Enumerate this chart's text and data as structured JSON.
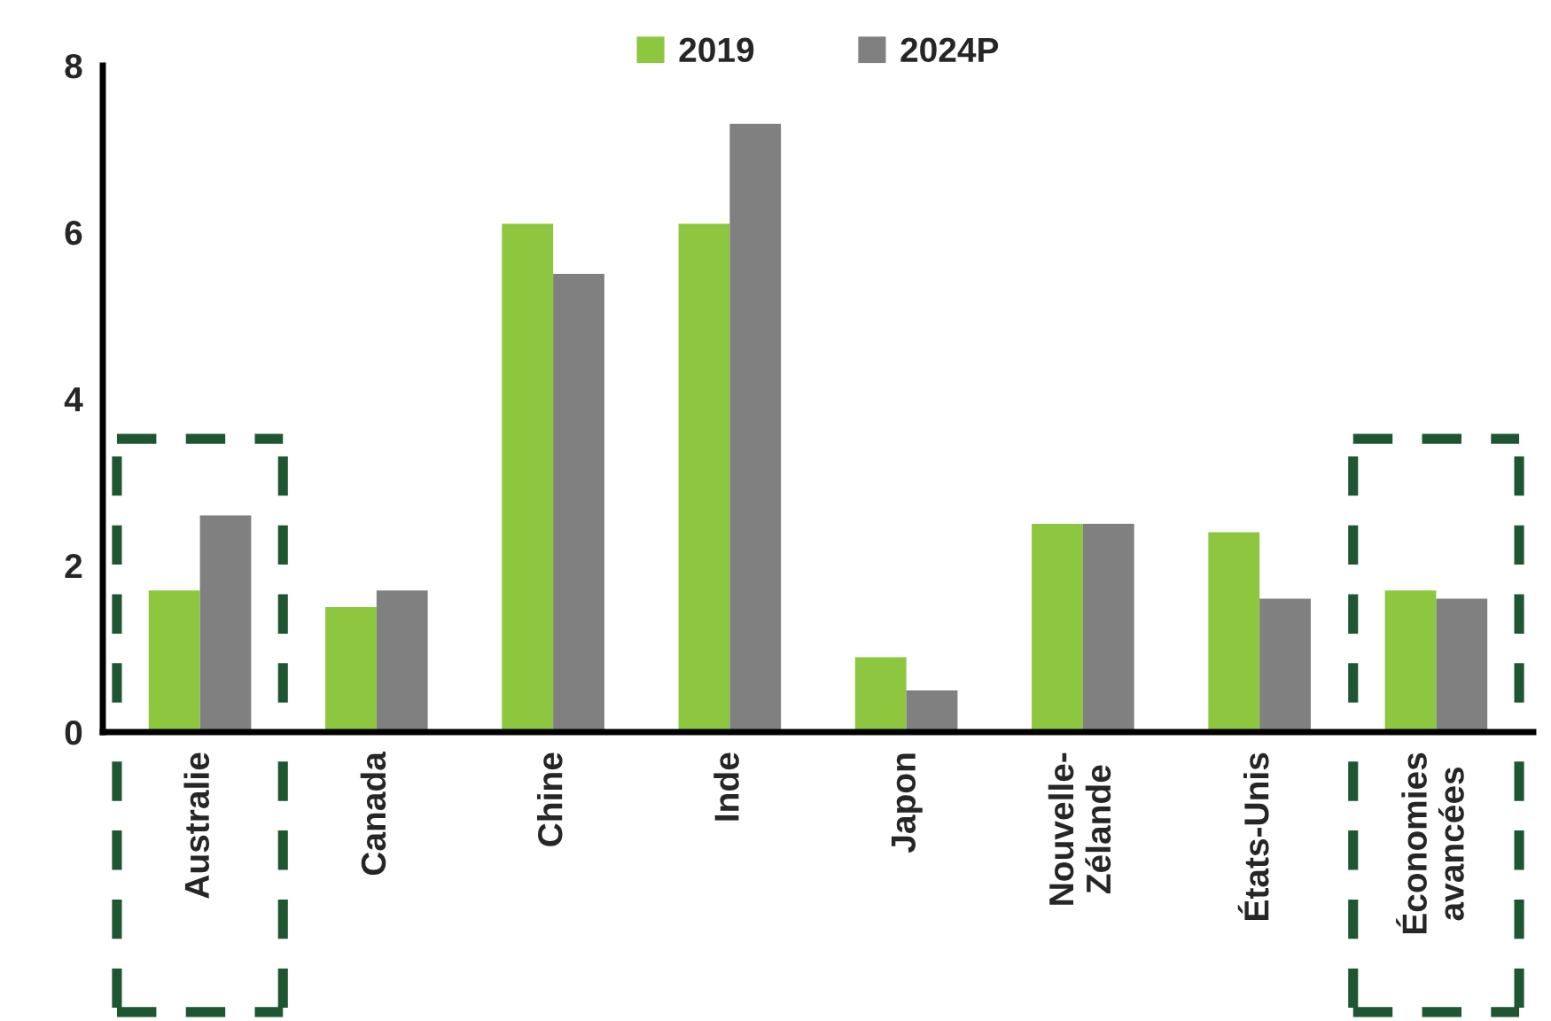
{
  "chart_data": {
    "type": "bar",
    "categories": [
      "Australie",
      "Canada",
      "Chine",
      "Inde",
      "Japon",
      "Nouvelle-\nZélande",
      "États-Unis",
      "Économies\navancées"
    ],
    "series": [
      {
        "name": "2019",
        "color": "#8dc63f",
        "values": [
          1.7,
          1.5,
          6.1,
          6.1,
          0.9,
          2.5,
          2.4,
          1.7
        ]
      },
      {
        "name": "2024P",
        "color": "#808080",
        "values": [
          2.6,
          1.7,
          5.5,
          7.3,
          0.5,
          2.5,
          1.6,
          1.6
        ]
      }
    ],
    "ylim": [
      0,
      8
    ],
    "yticks": [
      0,
      2,
      4,
      6,
      8
    ],
    "grid": false,
    "legend": "top"
  }
}
